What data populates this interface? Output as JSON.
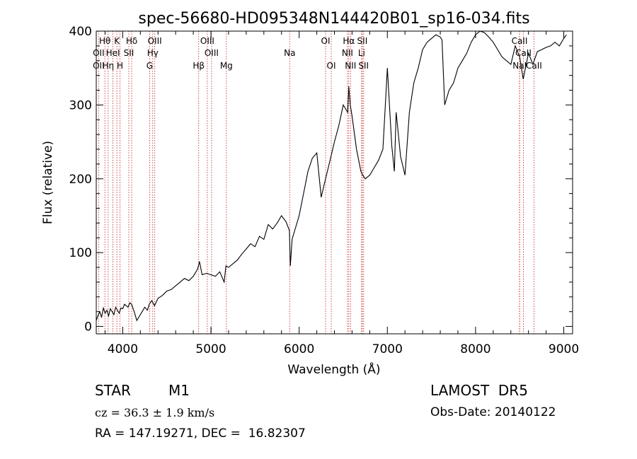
{
  "chart_data": {
    "type": "line",
    "title": "spec-56680-HD095348N144420B01_sp16-034.fits",
    "xlabel": "Wavelength (Å)",
    "ylabel": "Flux (relative)",
    "xlim": [
      3700,
      9100
    ],
    "ylim": [
      -10,
      400
    ],
    "xticks": [
      4000,
      5000,
      6000,
      7000,
      8000,
      9000
    ],
    "yticks": [
      0,
      100,
      200,
      300,
      400
    ],
    "grid": false,
    "series": [
      {
        "x": [
          3700,
          3720,
          3740,
          3760,
          3780,
          3800,
          3820,
          3840,
          3860,
          3880,
          3900,
          3920,
          3940,
          3960,
          3980,
          4000,
          4020,
          4040,
          4060,
          4080,
          4100,
          4130,
          4160,
          4190,
          4220,
          4250,
          4280,
          4300,
          4330,
          4360,
          4400,
          4450,
          4500,
          4550,
          4600,
          4650,
          4700,
          4750,
          4800,
          4850,
          4870,
          4900,
          4950,
          5000,
          5050,
          5100,
          5150,
          5170,
          5200,
          5250,
          5300,
          5350,
          5400,
          5450,
          5500,
          5550,
          5600,
          5650,
          5700,
          5750,
          5800,
          5850,
          5890,
          5900,
          5920,
          5950,
          6000,
          6050,
          6100,
          6150,
          6200,
          6250,
          6300,
          6350,
          6400,
          6450,
          6500,
          6550,
          6563,
          6580,
          6600,
          6650,
          6700,
          6720,
          6750,
          6800,
          6850,
          6900,
          6950,
          7000,
          7050,
          7080,
          7100,
          7150,
          7200,
          7250,
          7300,
          7350,
          7400,
          7450,
          7500,
          7550,
          7600,
          7620,
          7650,
          7700,
          7750,
          7800,
          7850,
          7900,
          7950,
          8000,
          8050,
          8100,
          8150,
          8200,
          8250,
          8300,
          8350,
          8400,
          8450,
          8500,
          8540,
          8600,
          8650,
          8700,
          8750,
          8800,
          8850,
          8900,
          8950,
          9000,
          9030
        ],
        "y": [
          8,
          15,
          20,
          12,
          25,
          18,
          22,
          14,
          24,
          20,
          16,
          26,
          22,
          18,
          25,
          24,
          30,
          28,
          26,
          32,
          30,
          20,
          8,
          14,
          20,
          26,
          22,
          30,
          35,
          28,
          38,
          42,
          48,
          50,
          55,
          60,
          65,
          62,
          68,
          78,
          88,
          70,
          72,
          70,
          68,
          74,
          60,
          82,
          80,
          85,
          90,
          98,
          105,
          112,
          108,
          122,
          118,
          138,
          132,
          140,
          150,
          142,
          130,
          82,
          118,
          130,
          150,
          180,
          210,
          228,
          235,
          175,
          200,
          225,
          250,
          272,
          300,
          290,
          325,
          300,
          285,
          240,
          210,
          205,
          200,
          205,
          215,
          225,
          240,
          350,
          245,
          210,
          290,
          230,
          205,
          290,
          330,
          350,
          375,
          385,
          390,
          395,
          392,
          388,
          300,
          320,
          330,
          350,
          360,
          370,
          385,
          395,
          400,
          398,
          392,
          385,
          375,
          365,
          360,
          355,
          380,
          365,
          335,
          370,
          355,
          372,
          375,
          378,
          380,
          385,
          380,
          390,
          395
        ]
      }
    ],
    "line_markers": [
      {
        "label": "Hθ",
        "x": 3798,
        "row": 1
      },
      {
        "label": "OII",
        "x": 3727,
        "row": 2
      },
      {
        "label": "OII",
        "x": 3727,
        "row": 3
      },
      {
        "label": "K",
        "x": 3934,
        "row": 1
      },
      {
        "label": "HeI",
        "x": 3889,
        "row": 2
      },
      {
        "label": "Hη",
        "x": 3835,
        "row": 3
      },
      {
        "label": "Hδ",
        "x": 4102,
        "row": 1
      },
      {
        "label": "SII",
        "x": 4069,
        "row": 2
      },
      {
        "label": "H",
        "x": 3969,
        "row": 3
      },
      {
        "label": "OIII",
        "x": 4363,
        "row": 1
      },
      {
        "label": "Hγ",
        "x": 4340,
        "row": 2
      },
      {
        "label": "G",
        "x": 4305,
        "row": 3
      },
      {
        "label": "OIII",
        "x": 4959,
        "row": 1
      },
      {
        "label": "OIII",
        "x": 5007,
        "row": 2
      },
      {
        "label": "Hβ",
        "x": 4861,
        "row": 3
      },
      {
        "label": "Mg",
        "x": 5175,
        "row": 3
      },
      {
        "label": "Na",
        "x": 5893,
        "row": 2
      },
      {
        "label": "OI",
        "x": 6300,
        "row": 1
      },
      {
        "label": "OI",
        "x": 6364,
        "row": 3
      },
      {
        "label": "Hα",
        "x": 6563,
        "row": 1
      },
      {
        "label": "SII",
        "x": 6716,
        "row": 1
      },
      {
        "label": "NII",
        "x": 6548,
        "row": 2
      },
      {
        "label": "Li",
        "x": 6708,
        "row": 2
      },
      {
        "label": "NII",
        "x": 6583,
        "row": 3
      },
      {
        "label": "SII",
        "x": 6731,
        "row": 3
      },
      {
        "label": "CaII",
        "x": 8498,
        "row": 1
      },
      {
        "label": "CaII",
        "x": 8542,
        "row": 2
      },
      {
        "label": "NaI",
        "x": 8500,
        "row": 3
      },
      {
        "label": "CaII",
        "x": 8662,
        "row": 3
      }
    ]
  },
  "info": {
    "object_class": "STAR",
    "subclass": "M1",
    "survey": "LAMOST  DR5",
    "cz": "cz = 36.3 ± 1.9 km/s",
    "obs_date": "Obs-Date: 20140122",
    "coords": "RA = 147.19271, DEC =  16.82307"
  }
}
